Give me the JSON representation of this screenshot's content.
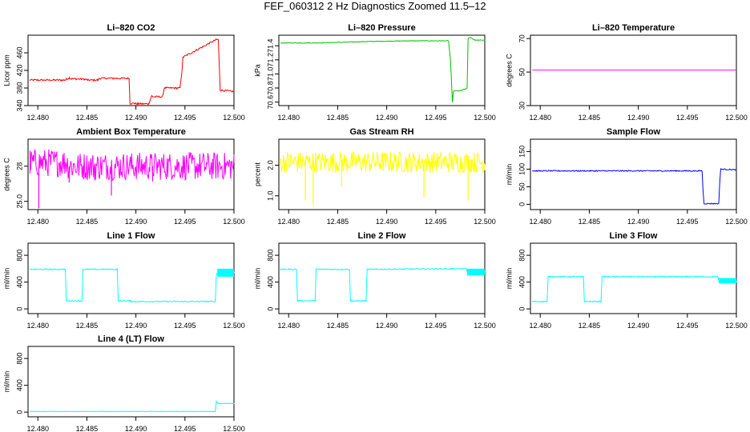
{
  "figure_title": "FEF_060312  2 Hz Diagnostics Zoomed 11.5–12",
  "colors": {
    "red": "#ff0000",
    "green": "#00c000",
    "magenta": "#ff00ff",
    "yellow": "#ffff00",
    "blue": "#0000ff",
    "cyan": "#00ffff",
    "axis": "#000000"
  },
  "chart_data": [
    {
      "type": "line",
      "title": "Li–820 CO2",
      "ylabel": "Licor ppm",
      "color": "red",
      "xlim": [
        12.479,
        12.5
      ],
      "ylim": [
        340,
        500
      ],
      "xticks": [
        12.48,
        12.485,
        12.49,
        12.495,
        12.5
      ],
      "xtick_labels": [
        "12.480",
        "12.485",
        "12.490",
        "12.495",
        "12.500"
      ],
      "yticks": [
        340,
        380,
        420,
        460
      ],
      "ytick_labels": [
        "340",
        "380",
        "420",
        "460"
      ],
      "noise": 2,
      "series": [
        {
          "name": "CO2",
          "x": [
            12.4792,
            12.4828,
            12.4829,
            12.4832,
            12.4834,
            12.4848,
            12.4851,
            12.4861,
            12.4863,
            12.4893,
            12.4894,
            12.4899,
            12.4902,
            12.4903,
            12.4913,
            12.4916,
            12.4917,
            12.4927,
            12.4929,
            12.4945,
            12.4947,
            12.4948,
            12.4982,
            12.4984,
            12.4986,
            12.5
          ],
          "y": [
            398,
            398,
            400,
            403,
            401,
            400,
            398,
            398,
            402,
            402,
            345,
            345,
            344,
            344,
            344,
            362,
            360,
            360,
            380,
            380,
            420,
            450,
            490,
            490,
            375,
            372
          ]
        }
      ]
    },
    {
      "type": "line",
      "title": "Li–820 Pressure",
      "ylabel": "kPa",
      "color": "green",
      "xlim": [
        12.479,
        12.5
      ],
      "ylim": [
        70.55,
        71.55
      ],
      "xticks": [
        12.48,
        12.485,
        12.49,
        12.495,
        12.5
      ],
      "xtick_labels": [
        "12.480",
        "12.485",
        "12.490",
        "12.495",
        "12.500"
      ],
      "yticks": [
        70.6,
        70.8,
        71.0,
        71.2,
        71.4
      ],
      "ytick_labels": [
        "70.6",
        "70.8",
        "71.0",
        "71.2",
        "71.4"
      ],
      "noise": 0.004,
      "series": [
        {
          "name": "Pressure",
          "x": [
            12.4792,
            12.483,
            12.488,
            12.4922,
            12.4925,
            12.4963,
            12.4965,
            12.4967,
            12.4967,
            12.4968,
            12.4969,
            12.4976,
            12.4978,
            12.498,
            12.4982,
            12.4983,
            12.4985,
            12.499,
            12.5
          ],
          "y": [
            71.44,
            71.44,
            71.46,
            71.47,
            71.47,
            71.47,
            71.2,
            70.6,
            70.58,
            70.75,
            70.76,
            70.76,
            70.78,
            70.78,
            70.8,
            71.5,
            71.52,
            71.48,
            71.48
          ]
        }
      ]
    },
    {
      "type": "line",
      "title": "Li–820 Temperature",
      "ylabel": "degrees C",
      "color": "magenta",
      "xlim": [
        12.479,
        12.5
      ],
      "ylim": [
        30,
        72
      ],
      "xticks": [
        12.48,
        12.485,
        12.49,
        12.495,
        12.5
      ],
      "xtick_labels": [
        "12.480",
        "12.485",
        "12.490",
        "12.495",
        "12.500"
      ],
      "yticks": [
        30,
        50,
        70
      ],
      "ytick_labels": [
        "30",
        "50",
        "70"
      ],
      "noise": 0,
      "series": [
        {
          "name": "Temperature",
          "x": [
            12.4792,
            12.5
          ],
          "y": [
            51.2,
            51.2
          ]
        }
      ]
    },
    {
      "type": "line",
      "title": "Ambient Box Temperature",
      "ylabel": "degrees C",
      "color": "magenta",
      "xlim": [
        12.479,
        12.5
      ],
      "ylim": [
        24.3,
        30.3
      ],
      "xticks": [
        12.48,
        12.485,
        12.49,
        12.495,
        12.5
      ],
      "xtick_labels": [
        "12.480",
        "12.485",
        "12.490",
        "12.495",
        "12.500"
      ],
      "yticks": [
        25,
        28
      ],
      "ytick_labels": [
        "25.0",
        "28"
      ],
      "noise": 1.2,
      "series": [
        {
          "name": "Box Temp",
          "x": [
            12.4792,
            12.4829,
            12.4832,
            12.5
          ],
          "y": [
            28.3,
            28.3,
            28.0,
            28.0
          ]
        }
      ],
      "spikes": [
        {
          "x": 12.4801,
          "y": 24.4
        },
        {
          "x": 12.4875,
          "y": 25.5
        },
        {
          "x": 12.4832,
          "y": 26.6
        },
        {
          "x": 12.4917,
          "y": 26.7
        },
        {
          "x": 12.4858,
          "y": 26.8
        }
      ]
    },
    {
      "type": "line",
      "title": "Gas Stream RH",
      "ylabel": "percent",
      "color": "yellow",
      "xlim": [
        12.479,
        12.5
      ],
      "ylim": [
        0.55,
        2.85
      ],
      "xticks": [
        12.48,
        12.485,
        12.49,
        12.495,
        12.5
      ],
      "xtick_labels": [
        "12.480",
        "12.485",
        "12.490",
        "12.495",
        "12.500"
      ],
      "yticks": [
        1.0,
        2.0
      ],
      "ytick_labels": [
        "1.0",
        "2.0"
      ],
      "noise": 0.35,
      "series": [
        {
          "name": "RH",
          "x": [
            12.4792,
            12.5
          ],
          "y": [
            2.1,
            2.1
          ]
        }
      ],
      "spikes": [
        {
          "x": 12.4825,
          "y": 0.7
        },
        {
          "x": 12.4817,
          "y": 0.85
        },
        {
          "x": 12.4938,
          "y": 0.95
        },
        {
          "x": 12.4983,
          "y": 0.85
        },
        {
          "x": 12.4854,
          "y": 1.3
        }
      ]
    },
    {
      "type": "line",
      "title": "Sample Flow",
      "ylabel": "ml/min",
      "color": "blue",
      "xlim": [
        12.479,
        12.5
      ],
      "ylim": [
        -15,
        185
      ],
      "xticks": [
        12.48,
        12.485,
        12.49,
        12.495,
        12.5
      ],
      "xtick_labels": [
        "12.480",
        "12.485",
        "12.490",
        "12.495",
        "12.500"
      ],
      "yticks": [
        0,
        50,
        100,
        150
      ],
      "ytick_labels": [
        "0",
        "50",
        "100",
        "150"
      ],
      "noise": 1.5,
      "series": [
        {
          "name": "Sample Flow",
          "x": [
            12.4792,
            12.4965,
            12.4966,
            12.4967,
            12.4982,
            12.4983,
            12.4984,
            12.5
          ],
          "y": [
            95,
            95,
            40,
            2,
            2,
            60,
            100,
            98
          ]
        }
      ]
    },
    {
      "type": "line",
      "title": "Line 1 Flow",
      "ylabel": "ml/min",
      "color": "cyan",
      "xlim": [
        12.479,
        12.5
      ],
      "ylim": [
        -70,
        980
      ],
      "xticks": [
        12.48,
        12.485,
        12.49,
        12.495,
        12.5
      ],
      "xtick_labels": [
        "12.480",
        "12.485",
        "12.490",
        "12.495",
        "12.500"
      ],
      "yticks": [
        0,
        400,
        800
      ],
      "ytick_labels": [
        "0",
        "400",
        "800"
      ],
      "noise": 8,
      "series": [
        {
          "name": "Line 1",
          "x": [
            12.4792,
            12.4828,
            12.4829,
            12.4845,
            12.4846,
            12.4881,
            12.4882,
            12.4894,
            12.4895,
            12.4981,
            12.4982,
            12.4983,
            12.5
          ],
          "y": [
            590,
            590,
            120,
            120,
            590,
            590,
            120,
            120,
            110,
            110,
            500,
            540,
            540
          ]
        }
      ],
      "band": {
        "x0": 12.4983,
        "x1": 12.5,
        "y0": 480,
        "y1": 600
      }
    },
    {
      "type": "line",
      "title": "Line 2 Flow",
      "ylabel": "ml/min",
      "color": "cyan",
      "xlim": [
        12.479,
        12.5
      ],
      "ylim": [
        -70,
        980
      ],
      "xticks": [
        12.48,
        12.485,
        12.49,
        12.495,
        12.5
      ],
      "xtick_labels": [
        "12.480",
        "12.485",
        "12.490",
        "12.495",
        "12.500"
      ],
      "yticks": [
        0,
        400,
        800
      ],
      "ytick_labels": [
        "0",
        "400",
        "800"
      ],
      "noise": 8,
      "series": [
        {
          "name": "Line 2",
          "x": [
            12.4792,
            12.4808,
            12.4809,
            12.4827,
            12.4828,
            12.4862,
            12.4863,
            12.4879,
            12.488,
            12.4981,
            12.4982,
            12.5
          ],
          "y": [
            590,
            590,
            120,
            120,
            590,
            590,
            120,
            120,
            590,
            600,
            560,
            560
          ]
        }
      ],
      "band": {
        "x0": 12.4982,
        "x1": 12.5,
        "y0": 500,
        "y1": 600
      }
    },
    {
      "type": "line",
      "title": "Line 3 Flow",
      "ylabel": "ml/min",
      "color": "cyan",
      "xlim": [
        12.479,
        12.5
      ],
      "ylim": [
        -70,
        980
      ],
      "xticks": [
        12.48,
        12.485,
        12.49,
        12.495,
        12.5
      ],
      "xtick_labels": [
        "12.480",
        "12.485",
        "12.490",
        "12.495",
        "12.500"
      ],
      "yticks": [
        0,
        400,
        800
      ],
      "ytick_labels": [
        "0",
        "400",
        "800"
      ],
      "noise": 8,
      "series": [
        {
          "name": "Line 3",
          "x": [
            12.4792,
            12.4807,
            12.4808,
            12.4844,
            12.4845,
            12.4862,
            12.4863,
            12.4981,
            12.4982,
            12.5
          ],
          "y": [
            110,
            110,
            480,
            480,
            110,
            110,
            480,
            480,
            420,
            420
          ]
        }
      ],
      "band": {
        "x0": 12.4982,
        "x1": 12.5,
        "y0": 380,
        "y1": 460
      }
    },
    {
      "type": "line",
      "title": "Line 4 (LT) Flow",
      "ylabel": "ml/min",
      "color": "cyan",
      "xlim": [
        12.479,
        12.5
      ],
      "ylim": [
        -70,
        980
      ],
      "xticks": [
        12.48,
        12.485,
        12.49,
        12.495,
        12.5
      ],
      "xtick_labels": [
        "12.480",
        "12.485",
        "12.490",
        "12.495",
        "12.500"
      ],
      "yticks": [
        0,
        400,
        800
      ],
      "ytick_labels": [
        "0",
        "400",
        "800"
      ],
      "noise": 3,
      "series": [
        {
          "name": "Line 4",
          "x": [
            12.4792,
            12.4981,
            12.4982,
            12.4984,
            12.5
          ],
          "y": [
            10,
            10,
            160,
            130,
            130
          ]
        }
      ]
    }
  ]
}
